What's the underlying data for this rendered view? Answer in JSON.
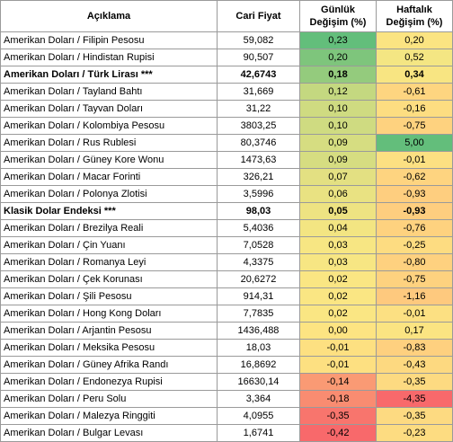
{
  "header": {
    "name": "Açıklama",
    "price": "Cari Fiyat",
    "daily_line1": "Günlük",
    "daily_line2": "Değişim (%)",
    "weekly_line1": "Haftalık",
    "weekly_line2": "Değişim (%)"
  },
  "rows": [
    {
      "name": "Amerikan Doları / Filipin Pesosu",
      "price": "59,082",
      "daily": "0,23",
      "weekly": "0,20",
      "bold": false,
      "daily_color": "#63be7b",
      "weekly_color": "#fbe482"
    },
    {
      "name": "Amerikan Doları / Hindistan Rupisi",
      "price": "90,507",
      "daily": "0,20",
      "weekly": "0,52",
      "bold": false,
      "daily_color": "#7ec57c",
      "weekly_color": "#f4e683"
    },
    {
      "name": "Amerikan Doları / Türk Lirası ***",
      "price": "42,6743",
      "daily": "0,18",
      "weekly": "0,34",
      "bold": true,
      "daily_color": "#94cb7d",
      "weekly_color": "#f8e582"
    },
    {
      "name": "Amerikan Doları / Tayland Bahtı",
      "price": "31,669",
      "daily": "0,12",
      "weekly": "-0,61",
      "bold": false,
      "daily_color": "#c4d880",
      "weekly_color": "#fed580"
    },
    {
      "name": "Amerikan Doları / Tayvan Doları",
      "price": "31,22",
      "daily": "0,10",
      "weekly": "-0,16",
      "bold": false,
      "daily_color": "#cfdb81",
      "weekly_color": "#fddd81"
    },
    {
      "name": "Amerikan Doları / Kolombiya Pesosu",
      "price": "3803,25",
      "daily": "0,10",
      "weekly": "-0,75",
      "bold": false,
      "daily_color": "#cfdb81",
      "weekly_color": "#fed27f"
    },
    {
      "name": "Amerikan Doları / Rus Rublesi",
      "price": "80,3746",
      "daily": "0,09",
      "weekly": "5,00",
      "bold": false,
      "daily_color": "#d6dd81",
      "weekly_color": "#63be7b"
    },
    {
      "name": "Amerikan Doları / Güney Kore Wonu",
      "price": "1473,63",
      "daily": "0,09",
      "weekly": "-0,01",
      "bold": false,
      "daily_color": "#d6dd81",
      "weekly_color": "#fce082"
    },
    {
      "name": "Amerikan Doları / Macar Forinti",
      "price": "326,21",
      "daily": "0,07",
      "weekly": "-0,62",
      "bold": false,
      "daily_color": "#e3e082",
      "weekly_color": "#fed480"
    },
    {
      "name": "Amerikan Doları / Polonya Zlotisi",
      "price": "3,5996",
      "daily": "0,06",
      "weekly": "-0,93",
      "bold": false,
      "daily_color": "#e9e282",
      "weekly_color": "#fece7f"
    },
    {
      "name": "Klasik Dolar Endeksi ***",
      "price": "98,03",
      "daily": "0,05",
      "weekly": "-0,93",
      "bold": true,
      "daily_color": "#eee382",
      "weekly_color": "#fece7f"
    },
    {
      "name": "Amerikan Doları / Brezilya Reali",
      "price": "5,4036",
      "daily": "0,04",
      "weekly": "-0,76",
      "bold": false,
      "daily_color": "#f3e582",
      "weekly_color": "#fed27f"
    },
    {
      "name": "Amerikan Doları / Çin Yuanı",
      "price": "7,0528",
      "daily": "0,03",
      "weekly": "-0,25",
      "bold": false,
      "daily_color": "#f7e683",
      "weekly_color": "#fddc81"
    },
    {
      "name": "Amerikan Doları / Romanya Leyi",
      "price": "4,3375",
      "daily": "0,03",
      "weekly": "-0,80",
      "bold": false,
      "daily_color": "#f7e683",
      "weekly_color": "#fed17f"
    },
    {
      "name": "Amerikan Doları / Çek Korunası",
      "price": "20,6272",
      "daily": "0,02",
      "weekly": "-0,75",
      "bold": false,
      "daily_color": "#fae683",
      "weekly_color": "#fed27f"
    },
    {
      "name": "Amerikan Doları / Şili Pesosu",
      "price": "914,31",
      "daily": "0,02",
      "weekly": "-1,16",
      "bold": false,
      "daily_color": "#fae683",
      "weekly_color": "#fec97e"
    },
    {
      "name": "Amerikan Doları / Hong Kong Doları",
      "price": "7,7835",
      "daily": "0,02",
      "weekly": "-0,01",
      "bold": false,
      "daily_color": "#fae683",
      "weekly_color": "#fce082"
    },
    {
      "name": "Amerikan Doları / Arjantin Pesosu",
      "price": "1436,488",
      "daily": "0,00",
      "weekly": "0,17",
      "bold": false,
      "daily_color": "#fde482",
      "weekly_color": "#fbe482"
    },
    {
      "name": "Amerikan Doları / Meksika Pesosu",
      "price": "18,03",
      "daily": "-0,01",
      "weekly": "-0,83",
      "bold": false,
      "daily_color": "#fde081",
      "weekly_color": "#fed07f"
    },
    {
      "name": "Amerikan Doları / Güney Afrika Randı",
      "price": "16,8692",
      "daily": "-0,01",
      "weekly": "-0,43",
      "bold": false,
      "daily_color": "#fde081",
      "weekly_color": "#fdd980"
    },
    {
      "name": "Amerikan Doları / Endonezya Rupisi",
      "price": "16630,14",
      "daily": "-0,14",
      "weekly": "-0,35",
      "bold": false,
      "daily_color": "#fa9a74",
      "weekly_color": "#fdda81"
    },
    {
      "name": "Amerikan Doları / Peru Solu",
      "price": "3,364",
      "daily": "-0,18",
      "weekly": "-4,35",
      "bold": false,
      "daily_color": "#f98c71",
      "weekly_color": "#f8696b"
    },
    {
      "name": "Amerikan Doları / Malezya Ringgiti",
      "price": "4,0955",
      "daily": "-0,35",
      "weekly": "-0,35",
      "bold": false,
      "daily_color": "#f8756d",
      "weekly_color": "#fdda81"
    },
    {
      "name": "Amerikan Doları / Bulgar Levası",
      "price": "1,6741",
      "daily": "-0,42",
      "weekly": "-0,23",
      "bold": false,
      "daily_color": "#f8696b",
      "weekly_color": "#fddc81"
    }
  ]
}
